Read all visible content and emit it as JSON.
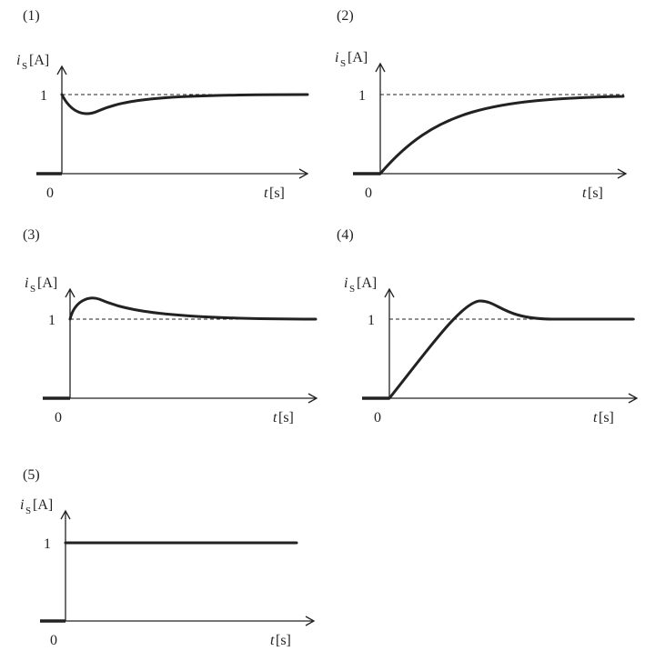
{
  "panels": [
    {
      "label": "(1)",
      "ylabel": "i",
      "ysub": "S",
      "yunit": "[A]",
      "level": "1",
      "origin": "0",
      "xlabel": "t",
      "xunit": "[s]"
    },
    {
      "label": "(2)",
      "ylabel": "i",
      "ysub": "S",
      "yunit": "[A]",
      "level": "1",
      "origin": "0",
      "xlabel": "t",
      "xunit": "[s]"
    },
    {
      "label": "(3)",
      "ylabel": "i",
      "ysub": "S",
      "yunit": "[A]",
      "level": "1",
      "origin": "0",
      "xlabel": "t",
      "xunit": "[s]"
    },
    {
      "label": "(4)",
      "ylabel": "i",
      "ysub": "S",
      "yunit": "[A]",
      "level": "1",
      "origin": "0",
      "xlabel": "t",
      "xunit": "[s]"
    },
    {
      "label": "(5)",
      "ylabel": "i",
      "ysub": "S",
      "yunit": "[A]",
      "level": "1",
      "origin": "0",
      "xlabel": "t",
      "xunit": "[s]"
    }
  ]
}
